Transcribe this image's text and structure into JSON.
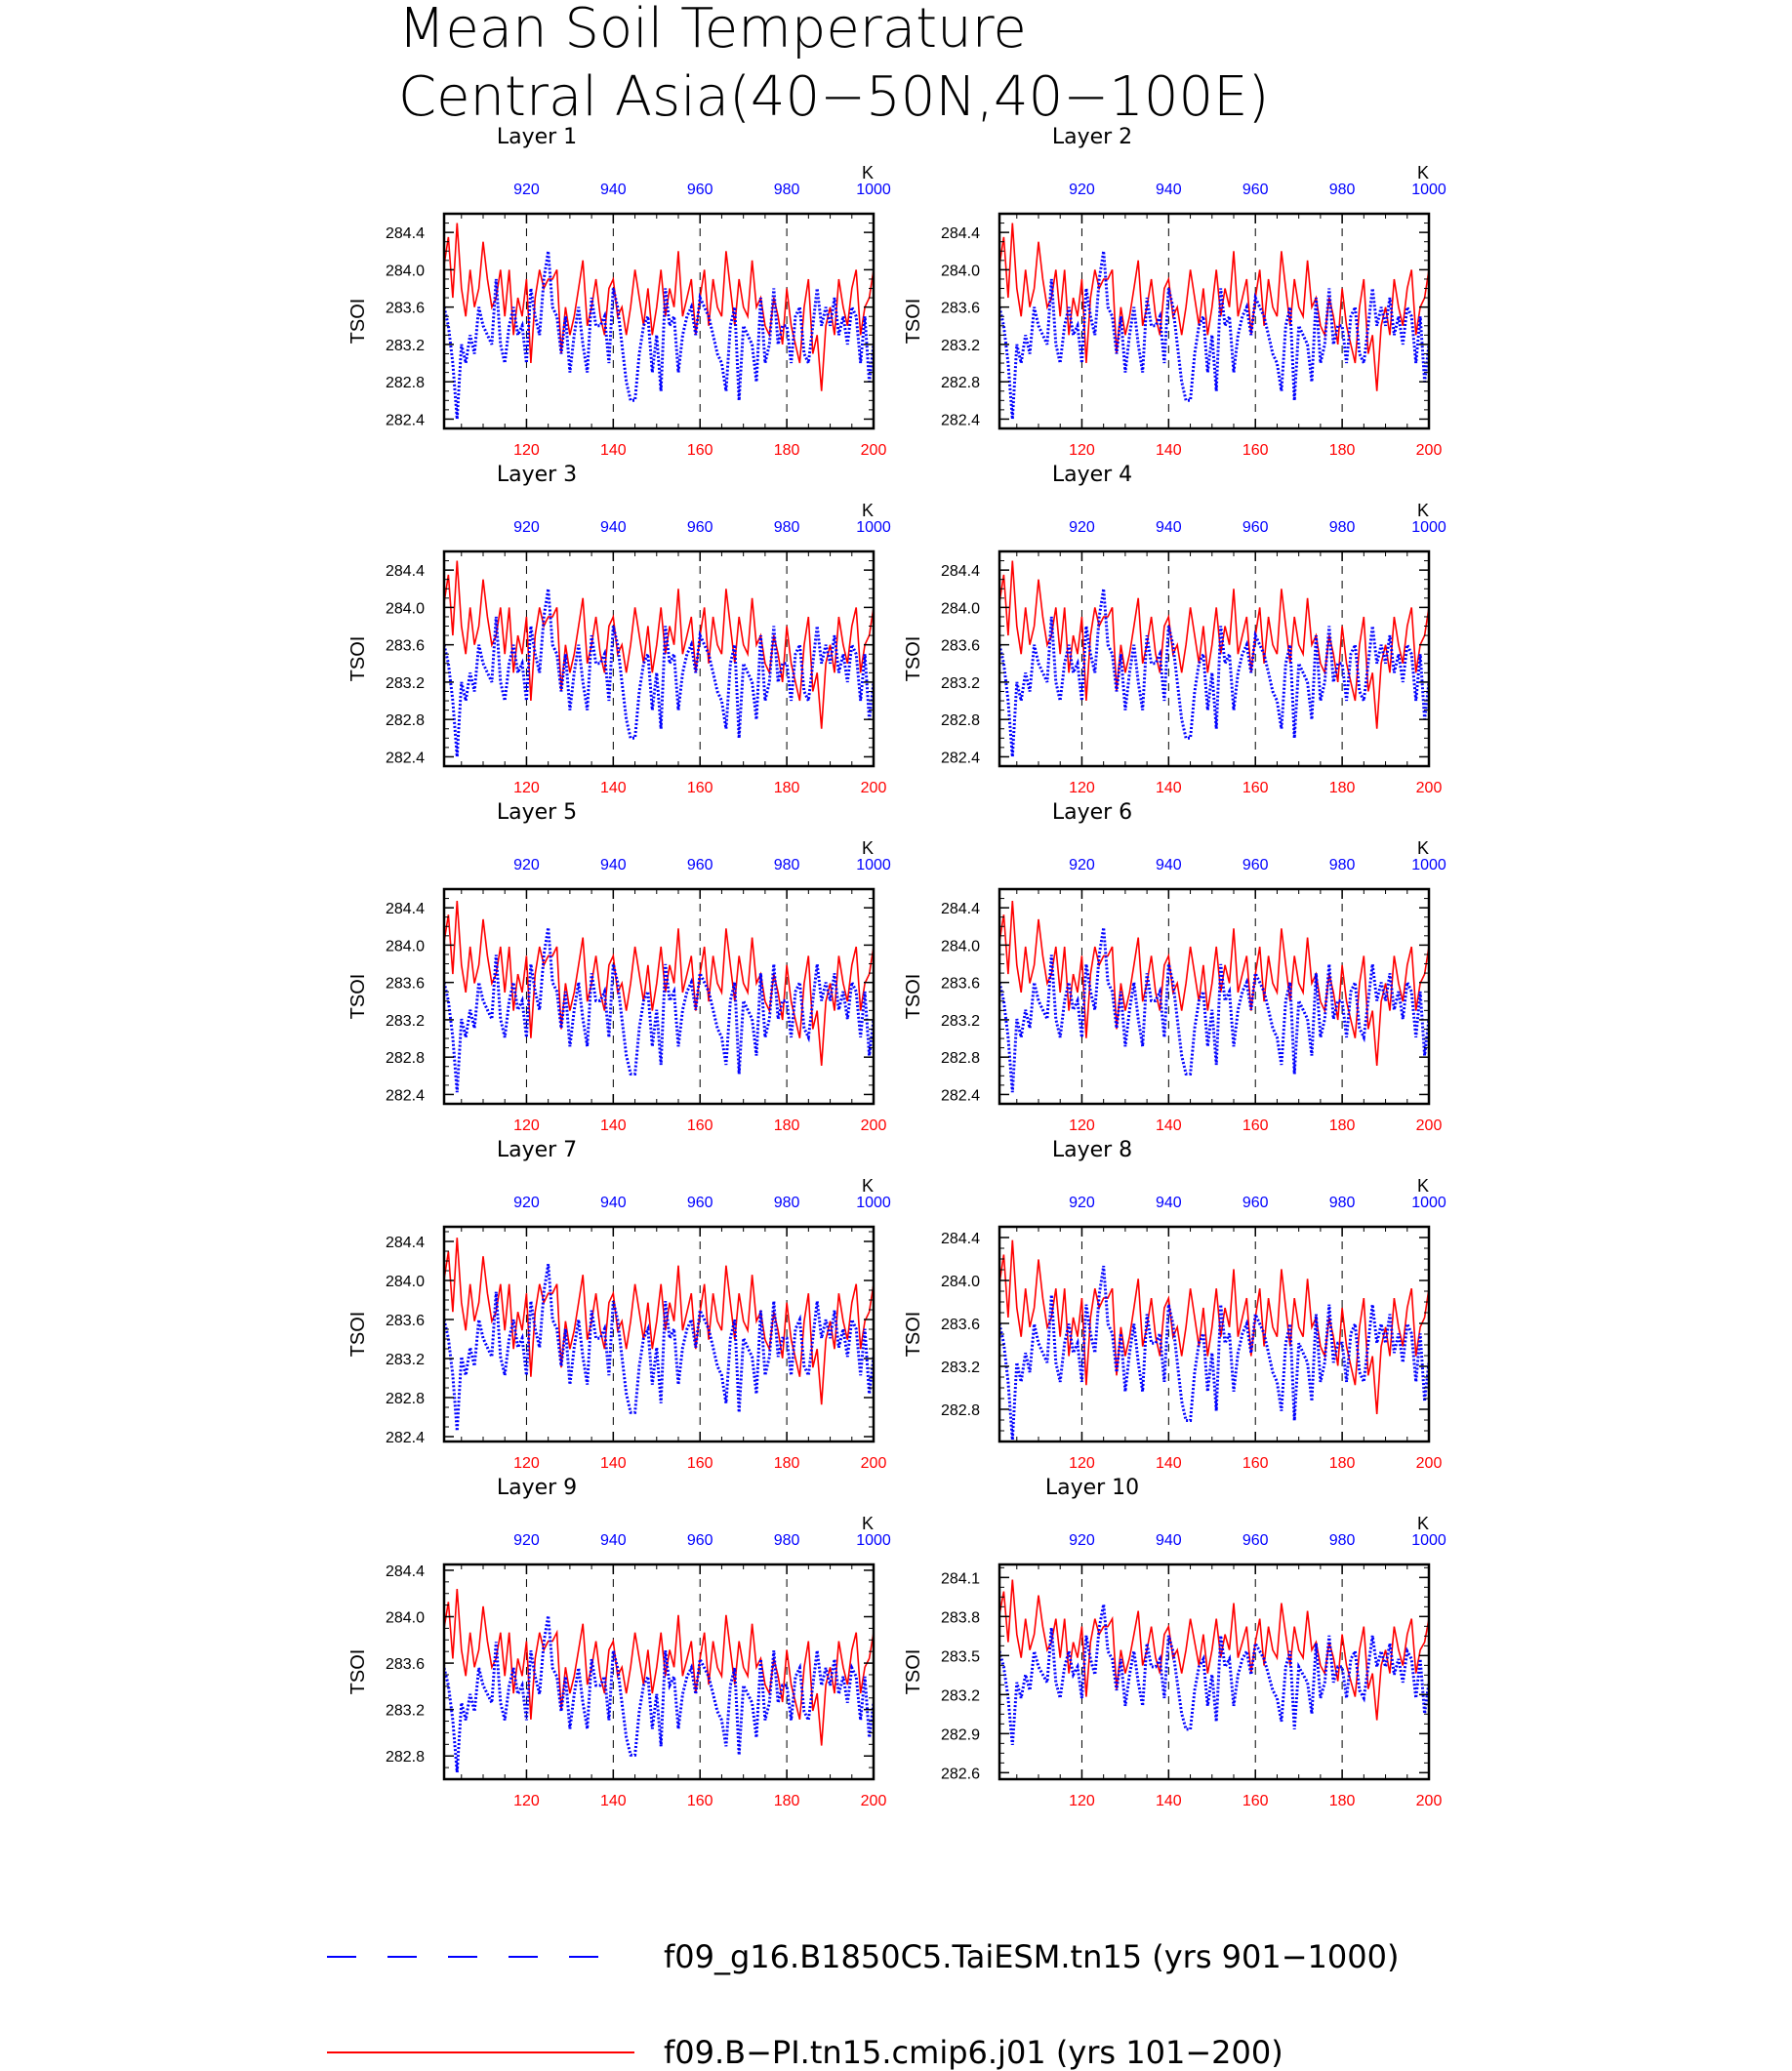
{
  "title": {
    "line1": "Mean Soil Temperature",
    "line2": "Central Asia(40−50N,40−100E)"
  },
  "colors": {
    "red": "#ff0000",
    "blue": "#0000ff",
    "grid": "#000000"
  },
  "legend": {
    "blue_label": "f09_g16.B1850C5.TaiESM.tn15 (yrs 901−1000)",
    "red_label": "f09.B−PI.tn15.cmip6.j01 (yrs 101−200)"
  },
  "chart_data": {
    "type": "line",
    "ylabel": "TSOI",
    "unit_label": "K",
    "bottom_axis": {
      "color": "#ff0000",
      "range": [
        101,
        200
      ],
      "ticks": [
        "120",
        "140",
        "160",
        "180",
        "200"
      ]
    },
    "top_axis": {
      "color": "#0000ff",
      "range": [
        901,
        1000
      ],
      "ticks": [
        "920",
        "940",
        "960",
        "980",
        "1000"
      ]
    },
    "grid": "vertical dashed at 120, 140, 160, 180",
    "series_styles": {
      "red": "solid",
      "blue": "dotted"
    },
    "panels": [
      {
        "title": "Layer 1",
        "ylim": [
          282.3,
          284.6
        ],
        "yticks": [
          "282.4",
          "282.8",
          "283.2",
          "283.6",
          "284.0",
          "284.4"
        ],
        "shift": 0.0,
        "scale": 1.0
      },
      {
        "title": "Layer 2",
        "ylim": [
          282.3,
          284.6
        ],
        "yticks": [
          "282.4",
          "282.8",
          "283.2",
          "283.6",
          "284.0",
          "284.4"
        ],
        "shift": 0.0,
        "scale": 1.0
      },
      {
        "title": "Layer 3",
        "ylim": [
          282.3,
          284.6
        ],
        "yticks": [
          "282.4",
          "282.8",
          "283.2",
          "283.6",
          "284.0",
          "284.4"
        ],
        "shift": 0.0,
        "scale": 1.0
      },
      {
        "title": "Layer 4",
        "ylim": [
          282.3,
          284.6
        ],
        "yticks": [
          "282.4",
          "282.8",
          "283.2",
          "283.6",
          "284.0",
          "284.4"
        ],
        "shift": 0.0,
        "scale": 1.0
      },
      {
        "title": "Layer 5",
        "ylim": [
          282.3,
          284.6
        ],
        "yticks": [
          "282.4",
          "282.8",
          "283.2",
          "283.6",
          "284.0",
          "284.4"
        ],
        "shift": 0.02,
        "scale": 0.98
      },
      {
        "title": "Layer 6",
        "ylim": [
          282.3,
          284.6
        ],
        "yticks": [
          "282.4",
          "282.8",
          "283.2",
          "283.6",
          "284.0",
          "284.4"
        ],
        "shift": 0.02,
        "scale": 0.98
      },
      {
        "title": "Layer 7",
        "ylim": [
          282.35,
          284.55
        ],
        "yticks": [
          "282.4",
          "282.8",
          "283.2",
          "283.6",
          "284.0",
          "284.4"
        ],
        "shift": 0.04,
        "scale": 0.95
      },
      {
        "title": "Layer 8",
        "ylim": [
          282.5,
          284.5
        ],
        "yticks": [
          "282.8",
          "283.2",
          "283.6",
          "284.0",
          "284.4"
        ],
        "shift": 0.08,
        "scale": 0.9
      },
      {
        "title": "Layer 9",
        "ylim": [
          282.6,
          284.45
        ],
        "yticks": [
          "282.8",
          "283.2",
          "283.6",
          "284.0",
          "284.4"
        ],
        "shift": 0.1,
        "scale": 0.75
      },
      {
        "title": "Layer 10",
        "ylim": [
          282.55,
          284.2
        ],
        "yticks": [
          "282.6",
          "282.9",
          "283.2",
          "283.5",
          "283.8",
          "284.1"
        ],
        "shift": 0.16,
        "scale": 0.6
      }
    ],
    "red_values": [
      284.05,
      284.35,
      283.7,
      284.5,
      283.8,
      283.5,
      284.0,
      283.6,
      283.8,
      284.3,
      283.9,
      283.6,
      283.7,
      284.0,
      283.5,
      284.0,
      283.3,
      283.7,
      283.5,
      283.9,
      283.0,
      283.7,
      284.0,
      283.8,
      283.9,
      283.9,
      284.0,
      283.1,
      283.6,
      283.3,
      283.5,
      283.8,
      284.1,
      283.4,
      283.6,
      283.9,
      283.5,
      283.3,
      283.8,
      283.9,
      283.5,
      283.6,
      283.3,
      283.6,
      284.0,
      283.7,
      283.4,
      283.8,
      283.3,
      283.6,
      284.0,
      283.5,
      283.8,
      283.6,
      284.2,
      283.5,
      283.7,
      283.9,
      283.3,
      283.7,
      284.0,
      283.4,
      283.9,
      283.6,
      283.5,
      284.2,
      283.8,
      283.4,
      283.9,
      283.6,
      283.5,
      284.1,
      283.6,
      283.7,
      283.4,
      283.3,
      283.7,
      283.5,
      283.2,
      283.8,
      283.4,
      283.2,
      283.0,
      283.6,
      283.9,
      283.1,
      283.3,
      282.7,
      283.4,
      283.6,
      283.3,
      283.9,
      283.6,
      283.4,
      283.8,
      284.0,
      283.3,
      283.6,
      283.7,
      284.0
    ],
    "blue_values": [
      283.6,
      283.4,
      283.0,
      282.4,
      283.2,
      283.0,
      283.3,
      283.1,
      283.6,
      283.4,
      283.3,
      283.2,
      283.9,
      283.2,
      283.0,
      283.4,
      283.6,
      283.3,
      283.4,
      283.0,
      283.8,
      283.5,
      283.3,
      283.9,
      284.2,
      283.6,
      283.5,
      283.1,
      283.5,
      282.9,
      283.3,
      283.6,
      283.2,
      282.9,
      283.7,
      283.4,
      283.4,
      283.5,
      283.0,
      283.8,
      283.6,
      283.2,
      282.8,
      282.6,
      282.6,
      283.1,
      283.4,
      283.5,
      282.9,
      283.3,
      282.7,
      283.8,
      283.4,
      283.5,
      282.9,
      283.3,
      283.5,
      283.6,
      283.3,
      283.7,
      283.6,
      283.5,
      283.3,
      283.1,
      283.0,
      282.7,
      283.4,
      283.6,
      282.6,
      283.4,
      283.3,
      283.2,
      282.8,
      283.7,
      283.0,
      283.2,
      283.8,
      283.2,
      283.4,
      283.4,
      283.0,
      283.5,
      283.6,
      283.1,
      283.0,
      283.4,
      283.8,
      283.4,
      283.6,
      283.4,
      283.7,
      283.3,
      283.5,
      283.2,
      283.6,
      283.5,
      283.0,
      283.5,
      282.8,
      283.2
    ]
  }
}
